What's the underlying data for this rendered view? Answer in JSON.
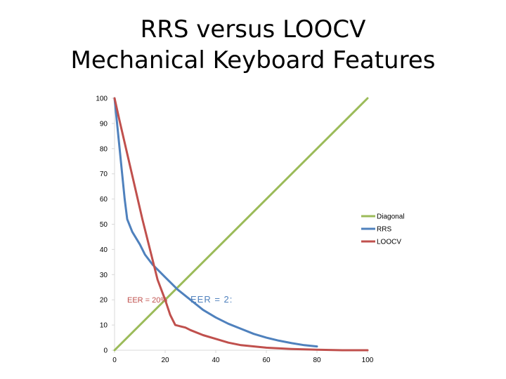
{
  "title_line1": "RRS versus LOOCV",
  "title_line2": "Mechanical Keyboard Features",
  "chart_data": {
    "type": "line",
    "xlim": [
      0,
      100
    ],
    "ylim": [
      0,
      100
    ],
    "xticks": [
      "0",
      "20",
      "40",
      "60",
      "80",
      "100"
    ],
    "yticks": [
      "0",
      "10",
      "20",
      "30",
      "40",
      "50",
      "60",
      "70",
      "80",
      "90",
      "100"
    ],
    "grid": false,
    "legend_position": "right",
    "series": [
      {
        "name": "Diagonal",
        "color": "#9bbb59",
        "x": [
          0,
          100
        ],
        "y": [
          0,
          100
        ]
      },
      {
        "name": "RRS",
        "color": "#4f81bd",
        "x": [
          0,
          1,
          2,
          3,
          4,
          5,
          7,
          10,
          12,
          15,
          18,
          20,
          22,
          25,
          30,
          35,
          40,
          45,
          50,
          55,
          60,
          65,
          70,
          75,
          80
        ],
        "y": [
          100,
          90,
          80,
          70,
          60,
          52,
          47,
          42,
          38,
          34,
          31,
          29,
          27,
          24,
          20,
          16,
          13,
          10.5,
          8.5,
          6.5,
          5,
          3.8,
          2.8,
          2,
          1.5
        ]
      },
      {
        "name": "LOOCV",
        "color": "#c0504d",
        "x": [
          0,
          2,
          5,
          8,
          11,
          14,
          17,
          20,
          22,
          23,
          24,
          26,
          28,
          30,
          35,
          40,
          45,
          50,
          60,
          70,
          80,
          90,
          100
        ],
        "y": [
          100,
          91,
          78,
          65,
          52,
          40,
          28,
          20,
          14,
          12,
          10,
          9.5,
          9,
          8,
          6,
          4.5,
          3,
          2,
          1,
          0.5,
          0.2,
          0,
          0
        ]
      }
    ],
    "annotations": [
      {
        "text": "EER = 20%",
        "x": 5,
        "y": 20,
        "color": "#c0504d"
      },
      {
        "text": "EER = 2:",
        "x": 30,
        "y": 20,
        "color": "#4f81bd"
      }
    ]
  }
}
